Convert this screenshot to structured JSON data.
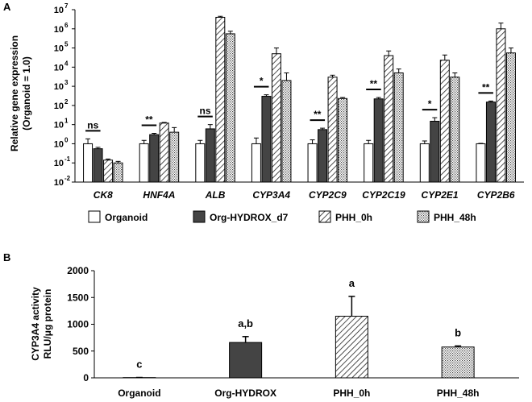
{
  "figure": {
    "panel_a_label": "A",
    "panel_b_label": "B"
  },
  "colors": {
    "organoid": "#ffffff",
    "org_hydrox": "#444444",
    "phh_0h": "hatch",
    "phh_48h": "dots"
  },
  "chart_data": [
    {
      "type": "bar",
      "scale": "log10",
      "ylabel_line1": "Relative gene expression",
      "ylabel_line2": "(Organoid = 1.0)",
      "ylim_exp": [
        -2,
        7
      ],
      "yticks": [
        {
          "exp": 7,
          "label": "10",
          "sup": "7"
        },
        {
          "exp": 6,
          "label": "10",
          "sup": "6"
        },
        {
          "exp": 5,
          "label": "10",
          "sup": "5"
        },
        {
          "exp": 4,
          "label": "10",
          "sup": "4"
        },
        {
          "exp": 3,
          "label": "10",
          "sup": "3"
        },
        {
          "exp": 2,
          "label": "10",
          "sup": "2"
        },
        {
          "exp": 1,
          "label": "10",
          "sup": "1"
        },
        {
          "exp": 0,
          "label": "10",
          "sup": "0"
        },
        {
          "exp": -1,
          "label": "10",
          "sup": "-1"
        },
        {
          "exp": -2,
          "label": "10",
          "sup": "-2"
        }
      ],
      "categories": [
        "CK8",
        "HNF4A",
        "ALB",
        "CYP3A4",
        "CYP2C9",
        "CYP2C19",
        "CYP2E1",
        "CYP2B6"
      ],
      "series": [
        {
          "name": "Organoid",
          "values": [
            1,
            1,
            1,
            1,
            1,
            1,
            1,
            1
          ],
          "errors": [
            0.8,
            0.5,
            0.5,
            1.0,
            0.6,
            0.5,
            0.4,
            0.05
          ]
        },
        {
          "name": "Org-HYDROX_d7",
          "values": [
            0.55,
            3,
            6,
            300,
            5.5,
            220,
            15,
            150
          ],
          "errors": [
            0.1,
            0.5,
            4,
            60,
            1,
            40,
            8,
            20
          ]
        },
        {
          "name": "PHH_0h",
          "values": [
            0.14,
            12,
            4000000,
            50000,
            3000,
            40000,
            23000,
            1000000
          ],
          "errors": [
            0.02,
            1,
            500000,
            50000,
            800,
            30000,
            20000,
            1000000
          ]
        },
        {
          "name": "PHH_48h",
          "values": [
            0.1,
            4,
            550000,
            2000,
            230,
            5000,
            3000,
            55000
          ],
          "errors": [
            0.02,
            3,
            200000,
            3000,
            30,
            3000,
            2000,
            45000
          ]
        }
      ],
      "significance": [
        {
          "category": "CK8",
          "label": "ns"
        },
        {
          "category": "HNF4A",
          "label": "**"
        },
        {
          "category": "ALB",
          "label": "ns"
        },
        {
          "category": "CYP3A4",
          "label": "*"
        },
        {
          "category": "CYP2C9",
          "label": "**"
        },
        {
          "category": "CYP2C19",
          "label": "**"
        },
        {
          "category": "CYP2E1",
          "label": "*"
        },
        {
          "category": "CYP2B6",
          "label": "**"
        }
      ],
      "legend": [
        "Organoid",
        "Org-HYDROX_d7",
        "PHH_0h",
        "PHH_48h"
      ]
    },
    {
      "type": "bar",
      "ylabel_line1": "CYP3A4 activity",
      "ylabel_line2": "RLU/μg protein",
      "ylim": [
        0,
        2000
      ],
      "yticks": [
        0,
        500,
        1000,
        1500,
        2000
      ],
      "categories": [
        "Organoid",
        "Org-HYDROX",
        "PHH_0h",
        "PHH_48h"
      ],
      "values": [
        5,
        660,
        1150,
        575
      ],
      "errors": [
        2,
        110,
        370,
        20
      ],
      "letters": [
        "c",
        "a,b",
        "a",
        "b"
      ]
    }
  ]
}
